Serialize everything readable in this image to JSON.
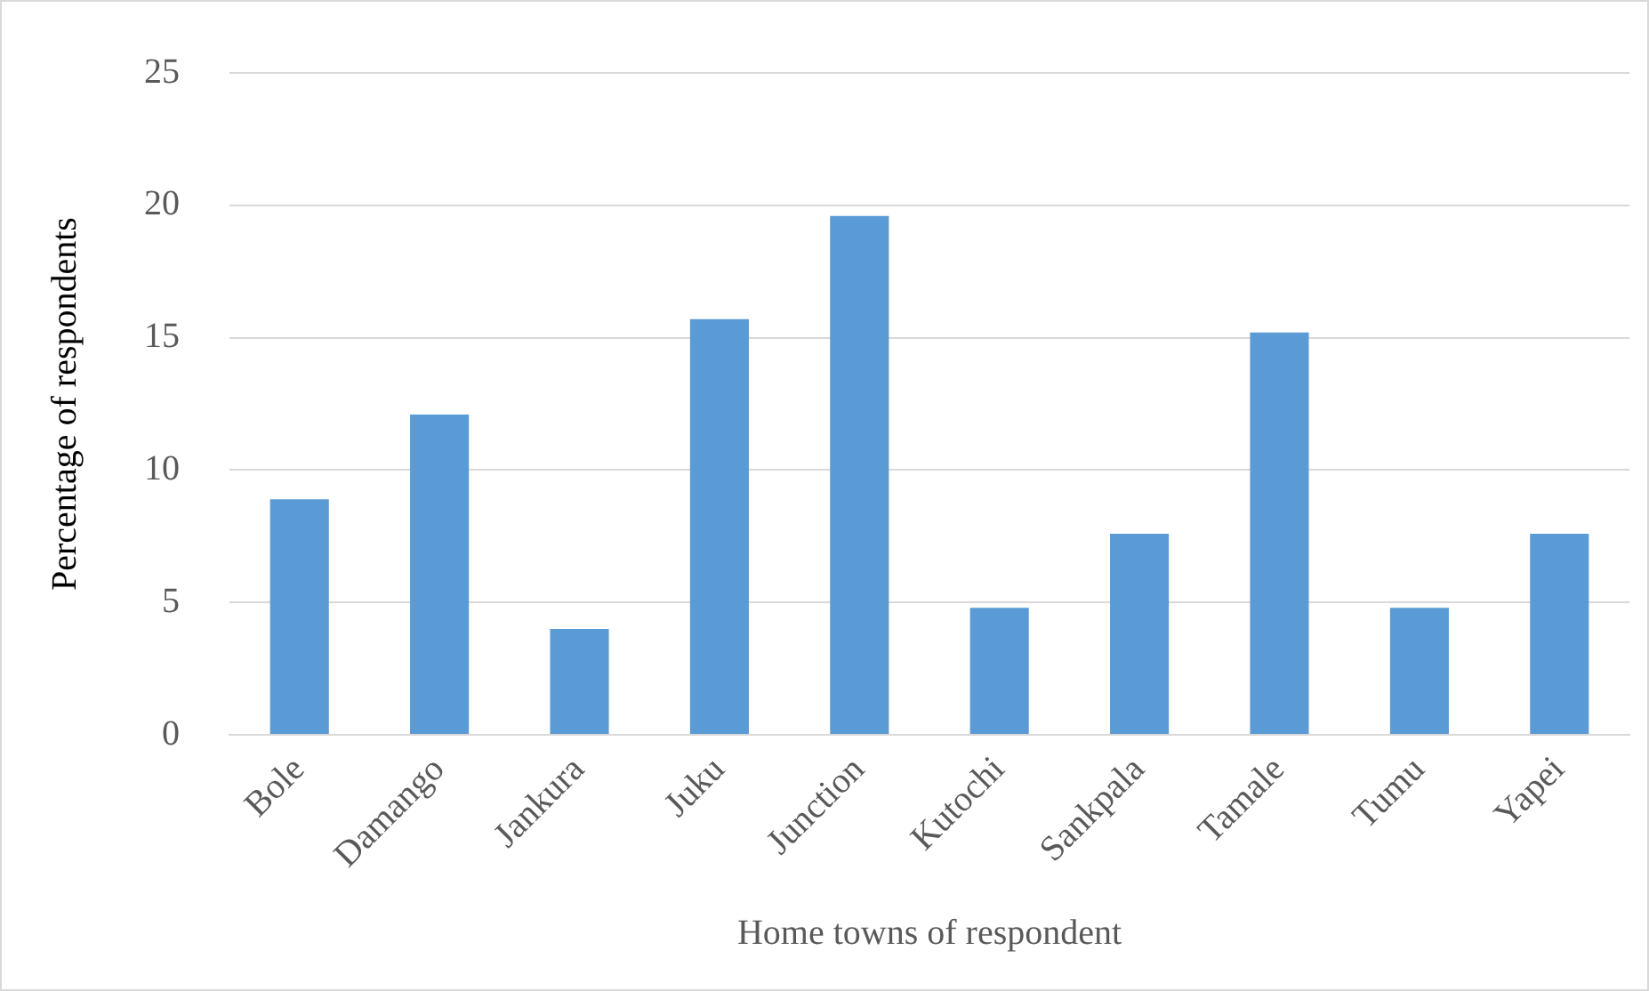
{
  "chart_data": {
    "type": "bar",
    "xlabel": "Home towns of respondent",
    "ylabel": "Percentage of respondents",
    "categories": [
      "Bole",
      "Damango",
      "Jankura",
      "Juku",
      "Junction",
      "Kutochi",
      "Sankpala",
      "Tamale",
      "Tumu",
      "Yapei"
    ],
    "values": [
      8.9,
      12.1,
      4.0,
      15.7,
      19.6,
      4.8,
      7.6,
      15.2,
      4.8,
      7.6
    ],
    "color": "#5b9bd5",
    "ylim": [
      0,
      25
    ],
    "yticks": [
      0,
      5,
      10,
      15,
      20,
      25
    ],
    "grid": "y",
    "legend": false
  }
}
